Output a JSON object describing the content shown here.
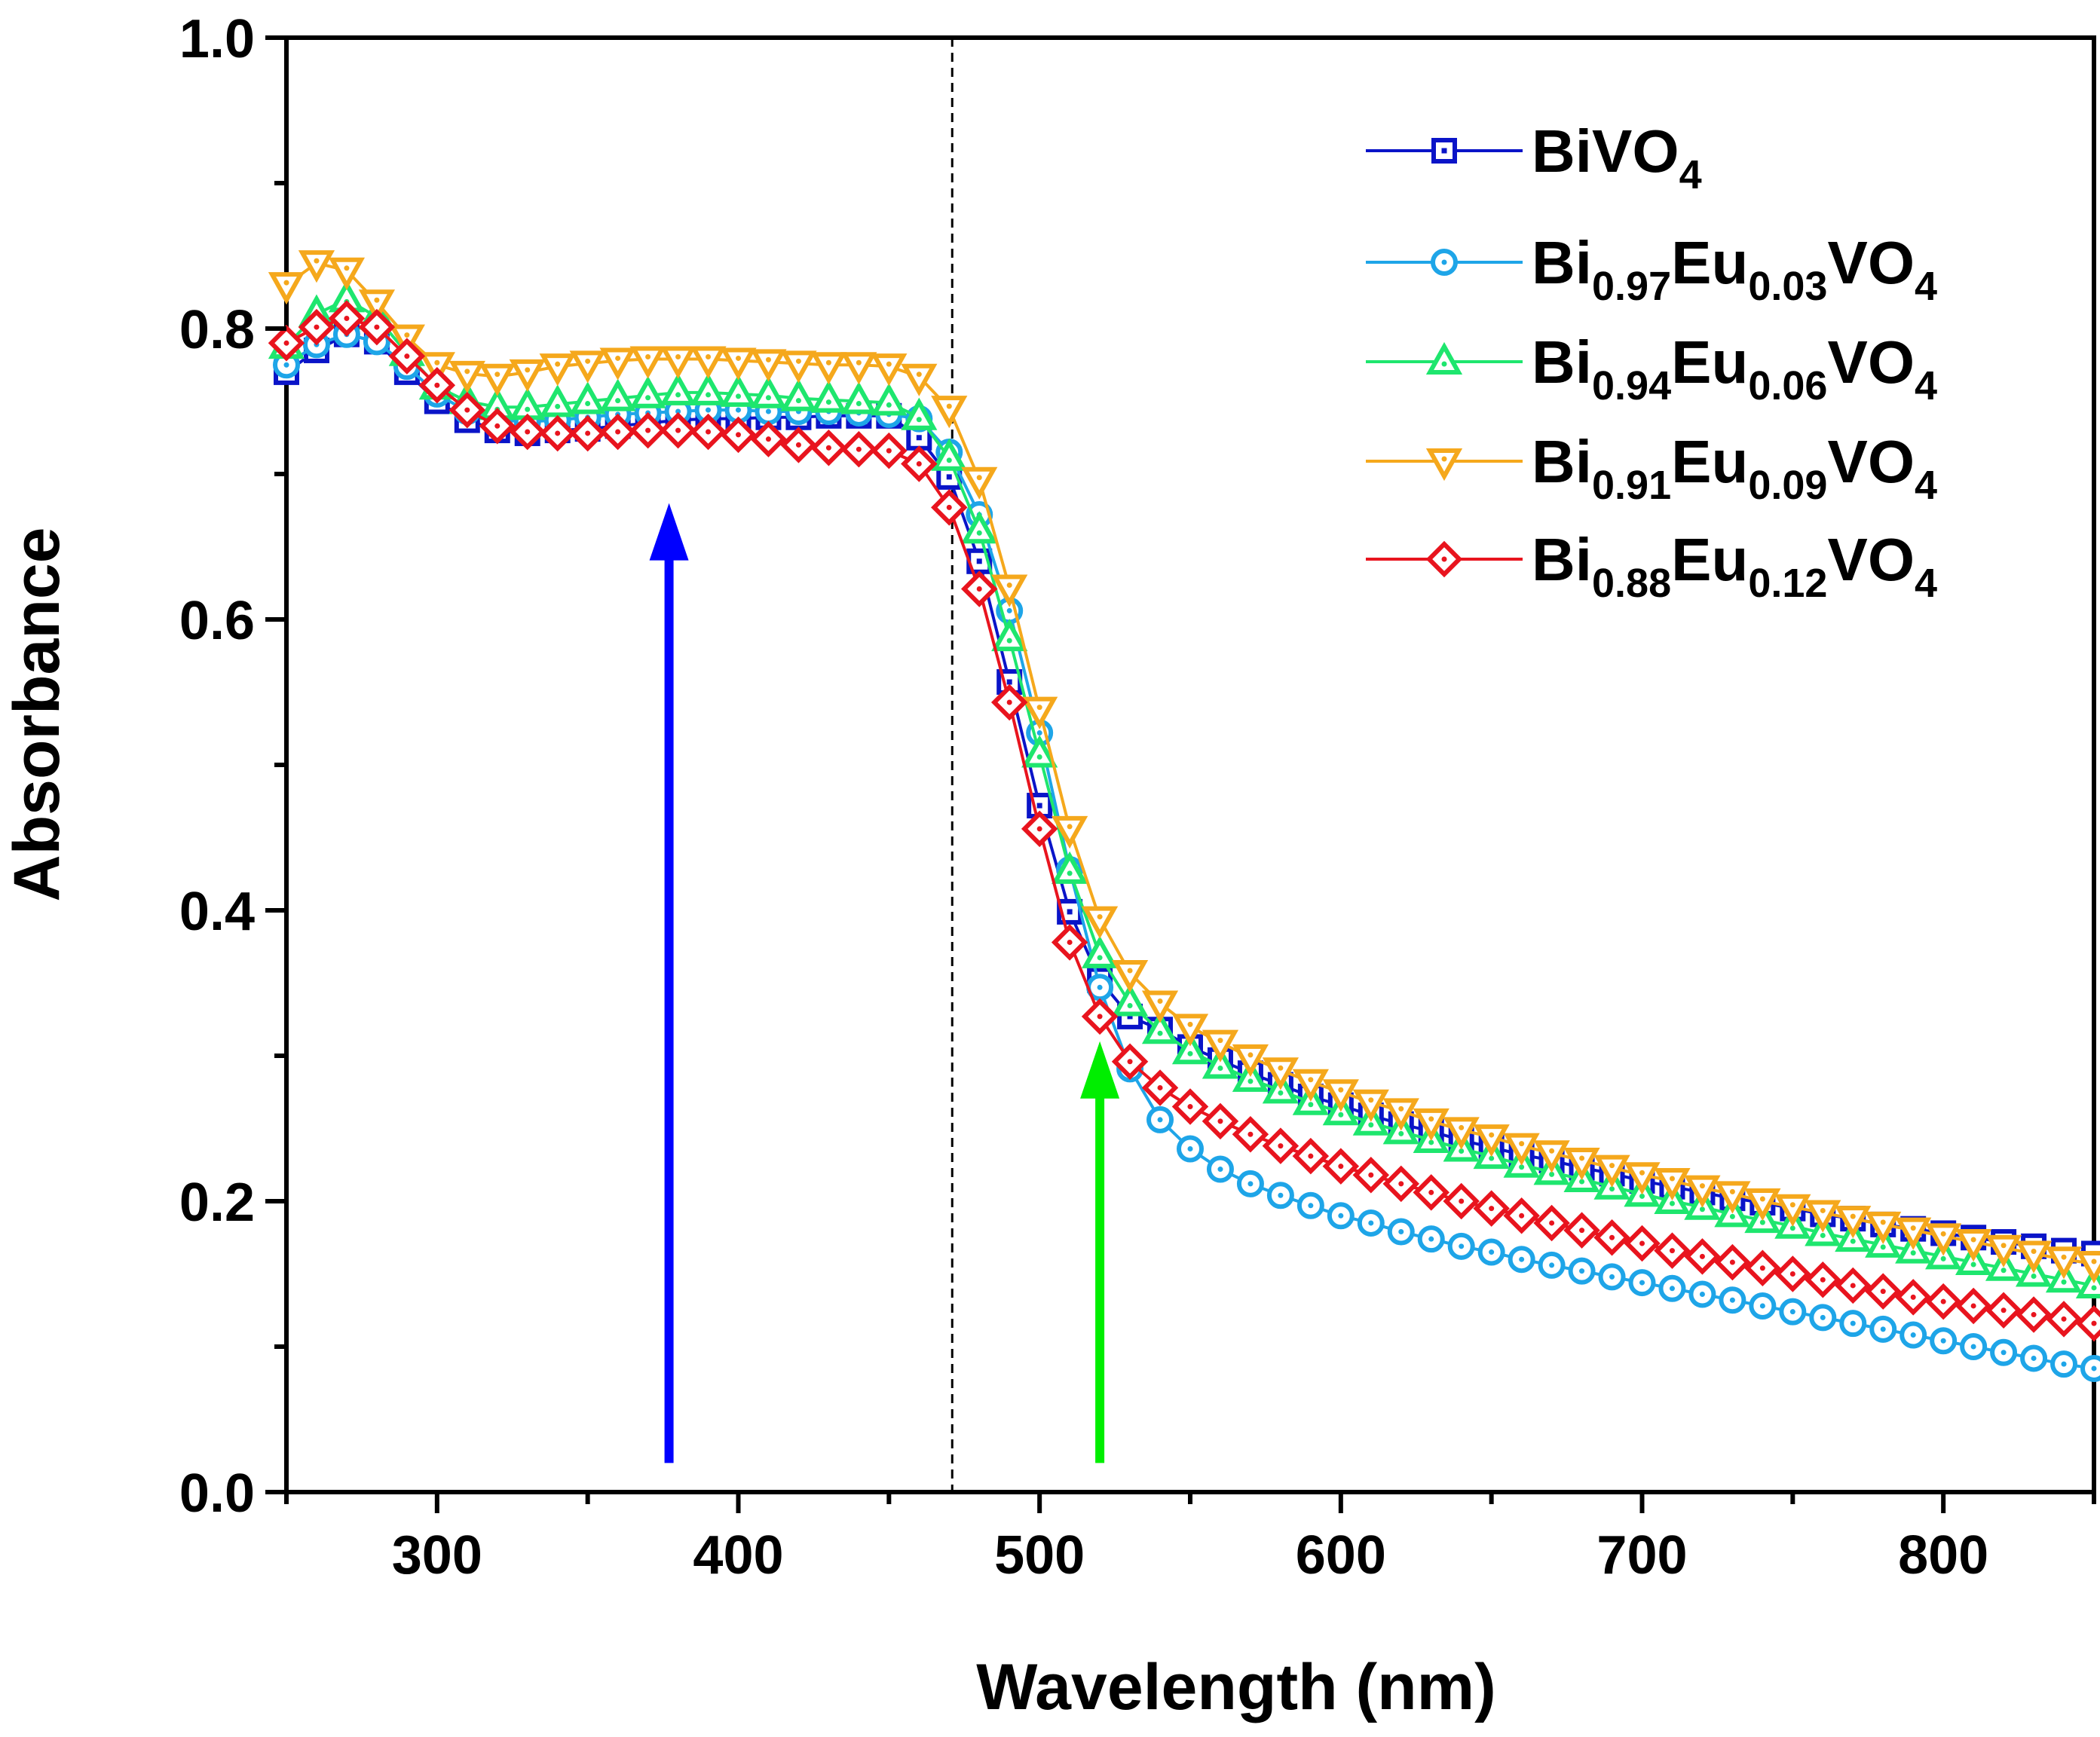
{
  "chart_data": {
    "type": "scatter",
    "title": "",
    "xlabel": "Wavelength (nm)",
    "ylabel": "Absorbance",
    "xlim": [
      250,
      850
    ],
    "ylim": [
      0.0,
      1.0
    ],
    "x_ticks": [
      300,
      400,
      500,
      600,
      700,
      800
    ],
    "x_tick_labels": [
      "300",
      "400",
      "500",
      "600",
      "700",
      "800"
    ],
    "y_ticks": [
      0.0,
      0.2,
      0.4,
      0.6,
      0.8,
      1.0
    ],
    "y_tick_labels": [
      "0.0",
      "0.2",
      "0.4",
      "0.6",
      "0.8",
      "1.0"
    ],
    "legend_position": "top-right",
    "annotations": {
      "dashed_vertical_line_x": 471,
      "arrows": [
        {
          "color": "#0000ff",
          "x": 377,
          "y_from": 0.02,
          "y_to": 0.68
        },
        {
          "color": "#00ee00",
          "x": 520,
          "y_from": 0.02,
          "y_to": 0.31
        }
      ]
    },
    "x": [
      250,
      260,
      270,
      280,
      290,
      300,
      310,
      320,
      330,
      340,
      350,
      360,
      370,
      380,
      390,
      400,
      410,
      420,
      430,
      440,
      450,
      460,
      470,
      480,
      490,
      500,
      510,
      520,
      530,
      540,
      550,
      560,
      570,
      580,
      590,
      600,
      610,
      620,
      630,
      640,
      650,
      660,
      670,
      680,
      690,
      700,
      710,
      720,
      730,
      740,
      750,
      760,
      770,
      780,
      790,
      800,
      810,
      820,
      830,
      840,
      850
    ],
    "series": [
      {
        "name": "BiVO4",
        "legend": {
          "main": "BiVO",
          "parts": [
            [
              "4",
              "sub"
            ]
          ]
        },
        "color": "#0a14c8",
        "marker": "square",
        "values": [
          0.77,
          0.785,
          0.796,
          0.791,
          0.77,
          0.75,
          0.737,
          0.73,
          0.728,
          0.73,
          0.731,
          0.733,
          0.735,
          0.737,
          0.738,
          0.738,
          0.739,
          0.739,
          0.74,
          0.74,
          0.74,
          0.725,
          0.698,
          0.64,
          0.557,
          0.472,
          0.399,
          0.352,
          0.327,
          0.318,
          0.306,
          0.297,
          0.288,
          0.28,
          0.272,
          0.266,
          0.259,
          0.253,
          0.248,
          0.242,
          0.237,
          0.232,
          0.228,
          0.223,
          0.219,
          0.214,
          0.21,
          0.206,
          0.202,
          0.199,
          0.195,
          0.191,
          0.188,
          0.184,
          0.181,
          0.178,
          0.175,
          0.172,
          0.169,
          0.166,
          0.164
        ]
      },
      {
        "name": "Bi0.97Eu0.03VO4",
        "legend": {
          "main": "Bi",
          "parts": [
            [
              "0.97",
              "sub"
            ],
            [
              "Eu",
              "main"
            ],
            [
              "0.03",
              "sub"
            ],
            [
              "VO",
              "main"
            ],
            [
              "4",
              "sub"
            ]
          ]
        },
        "color": "#1ea5e8",
        "marker": "circle",
        "values": [
          0.775,
          0.789,
          0.796,
          0.791,
          0.774,
          0.755,
          0.743,
          0.737,
          0.736,
          0.737,
          0.739,
          0.741,
          0.742,
          0.743,
          0.744,
          0.744,
          0.743,
          0.743,
          0.743,
          0.742,
          0.741,
          0.738,
          0.715,
          0.672,
          0.606,
          0.522,
          0.428,
          0.347,
          0.291,
          0.256,
          0.236,
          0.222,
          0.212,
          0.204,
          0.197,
          0.19,
          0.185,
          0.179,
          0.174,
          0.169,
          0.165,
          0.16,
          0.156,
          0.152,
          0.148,
          0.144,
          0.14,
          0.136,
          0.132,
          0.128,
          0.124,
          0.12,
          0.116,
          0.112,
          0.108,
          0.104,
          0.1,
          0.096,
          0.092,
          0.088,
          0.085
        ]
      },
      {
        "name": "Bi0.94Eu0.06VO4",
        "legend": {
          "main": "Bi",
          "parts": [
            [
              "0.94",
              "sub"
            ],
            [
              "Eu",
              "main"
            ],
            [
              "0.06",
              "sub"
            ],
            [
              "VO",
              "main"
            ],
            [
              "4",
              "sub"
            ]
          ]
        },
        "color": "#1ee66e",
        "marker": "triangle-up",
        "values": [
          0.788,
          0.81,
          0.82,
          0.808,
          0.783,
          0.76,
          0.75,
          0.746,
          0.746,
          0.748,
          0.75,
          0.752,
          0.754,
          0.756,
          0.756,
          0.755,
          0.754,
          0.752,
          0.751,
          0.75,
          0.749,
          0.739,
          0.711,
          0.661,
          0.587,
          0.507,
          0.427,
          0.369,
          0.336,
          0.317,
          0.303,
          0.293,
          0.284,
          0.276,
          0.268,
          0.261,
          0.254,
          0.248,
          0.242,
          0.236,
          0.231,
          0.225,
          0.22,
          0.215,
          0.21,
          0.205,
          0.2,
          0.196,
          0.191,
          0.187,
          0.183,
          0.178,
          0.174,
          0.17,
          0.166,
          0.162,
          0.158,
          0.154,
          0.15,
          0.146,
          0.142
        ]
      },
      {
        "name": "Bi0.91Eu0.09VO4",
        "legend": {
          "main": "Bi",
          "parts": [
            [
              "0.91",
              "sub"
            ],
            [
              "Eu",
              "main"
            ],
            [
              "0.09",
              "sub"
            ],
            [
              "VO",
              "main"
            ],
            [
              "4",
              "sub"
            ]
          ]
        },
        "color": "#f5a81c",
        "marker": "triangle-down",
        "values": [
          0.83,
          0.845,
          0.84,
          0.818,
          0.794,
          0.775,
          0.769,
          0.767,
          0.77,
          0.774,
          0.776,
          0.778,
          0.779,
          0.779,
          0.779,
          0.778,
          0.777,
          0.776,
          0.775,
          0.775,
          0.774,
          0.767,
          0.745,
          0.696,
          0.622,
          0.538,
          0.456,
          0.394,
          0.357,
          0.336,
          0.32,
          0.309,
          0.299,
          0.29,
          0.282,
          0.275,
          0.268,
          0.262,
          0.255,
          0.249,
          0.244,
          0.238,
          0.233,
          0.228,
          0.223,
          0.218,
          0.214,
          0.209,
          0.205,
          0.2,
          0.196,
          0.192,
          0.188,
          0.184,
          0.18,
          0.176,
          0.172,
          0.168,
          0.164,
          0.16,
          0.157
        ]
      },
      {
        "name": "Bi0.88Eu0.12VO4",
        "legend": {
          "main": "Bi",
          "parts": [
            [
              "0.88",
              "sub"
            ],
            [
              "Eu",
              "main"
            ],
            [
              "0.12",
              "sub"
            ],
            [
              "VO",
              "main"
            ],
            [
              "4",
              "sub"
            ]
          ]
        },
        "color": "#e8141e",
        "marker": "diamond",
        "values": [
          0.79,
          0.801,
          0.807,
          0.801,
          0.781,
          0.761,
          0.744,
          0.733,
          0.729,
          0.728,
          0.728,
          0.729,
          0.73,
          0.73,
          0.729,
          0.727,
          0.724,
          0.72,
          0.718,
          0.717,
          0.716,
          0.707,
          0.677,
          0.621,
          0.543,
          0.456,
          0.378,
          0.327,
          0.296,
          0.278,
          0.265,
          0.255,
          0.246,
          0.238,
          0.231,
          0.224,
          0.218,
          0.212,
          0.206,
          0.2,
          0.195,
          0.19,
          0.185,
          0.18,
          0.175,
          0.171,
          0.166,
          0.162,
          0.158,
          0.154,
          0.15,
          0.146,
          0.142,
          0.138,
          0.134,
          0.131,
          0.128,
          0.125,
          0.122,
          0.119,
          0.116
        ]
      }
    ]
  }
}
